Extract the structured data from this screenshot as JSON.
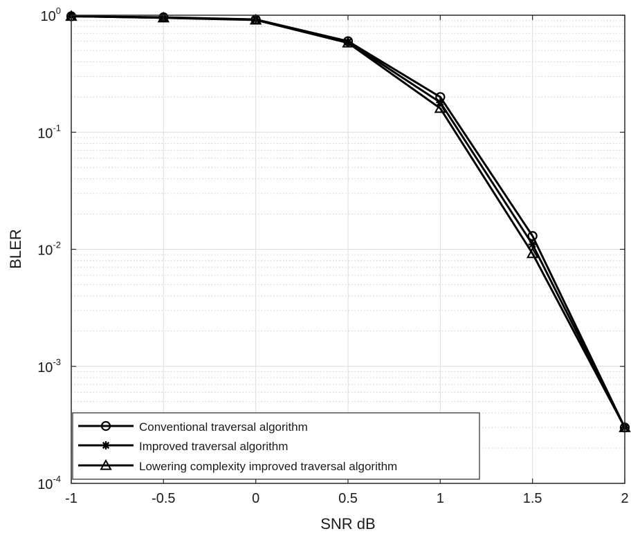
{
  "chart_data": {
    "type": "line",
    "title": "",
    "xlabel": "SNR dB",
    "ylabel": "BLER",
    "xlim": [
      -1,
      2
    ],
    "ylim": [
      0.0001,
      1
    ],
    "yscale": "log",
    "grid": true,
    "minor_grid": true,
    "legend_position": "bottom-left",
    "x_ticks": [
      {
        "value": -1,
        "label": "-1"
      },
      {
        "value": -0.5,
        "label": "-0.5"
      },
      {
        "value": 0,
        "label": "0"
      },
      {
        "value": 0.5,
        "label": "0.5"
      },
      {
        "value": 1,
        "label": "1"
      },
      {
        "value": 1.5,
        "label": "1.5"
      },
      {
        "value": 2,
        "label": "2"
      }
    ],
    "y_ticks": [
      {
        "value": 0.0001,
        "base": "10",
        "exp": "-4"
      },
      {
        "value": 0.001,
        "base": "10",
        "exp": "-3"
      },
      {
        "value": 0.01,
        "base": "10",
        "exp": "-2"
      },
      {
        "value": 0.1,
        "base": "10",
        "exp": "-1"
      },
      {
        "value": 1,
        "base": "10",
        "exp": "0"
      }
    ],
    "x": [
      -1,
      -0.5,
      0,
      0.5,
      1,
      1.5,
      2
    ],
    "series": [
      {
        "name": "Conventional traversal algorithm",
        "marker": "circle",
        "color": "#000000",
        "values": [
          0.98,
          0.96,
          0.92,
          0.6,
          0.2,
          0.013,
          0.0003
        ]
      },
      {
        "name": "Improved traversal algorithm",
        "marker": "asterisk",
        "color": "#000000",
        "values": [
          0.98,
          0.95,
          0.92,
          0.59,
          0.18,
          0.011,
          0.0003
        ]
      },
      {
        "name": "Lowering complexity improved traversal algorithm",
        "marker": "triangle",
        "color": "#000000",
        "values": [
          0.98,
          0.95,
          0.91,
          0.58,
          0.16,
          0.0092,
          0.0003
        ]
      }
    ]
  }
}
